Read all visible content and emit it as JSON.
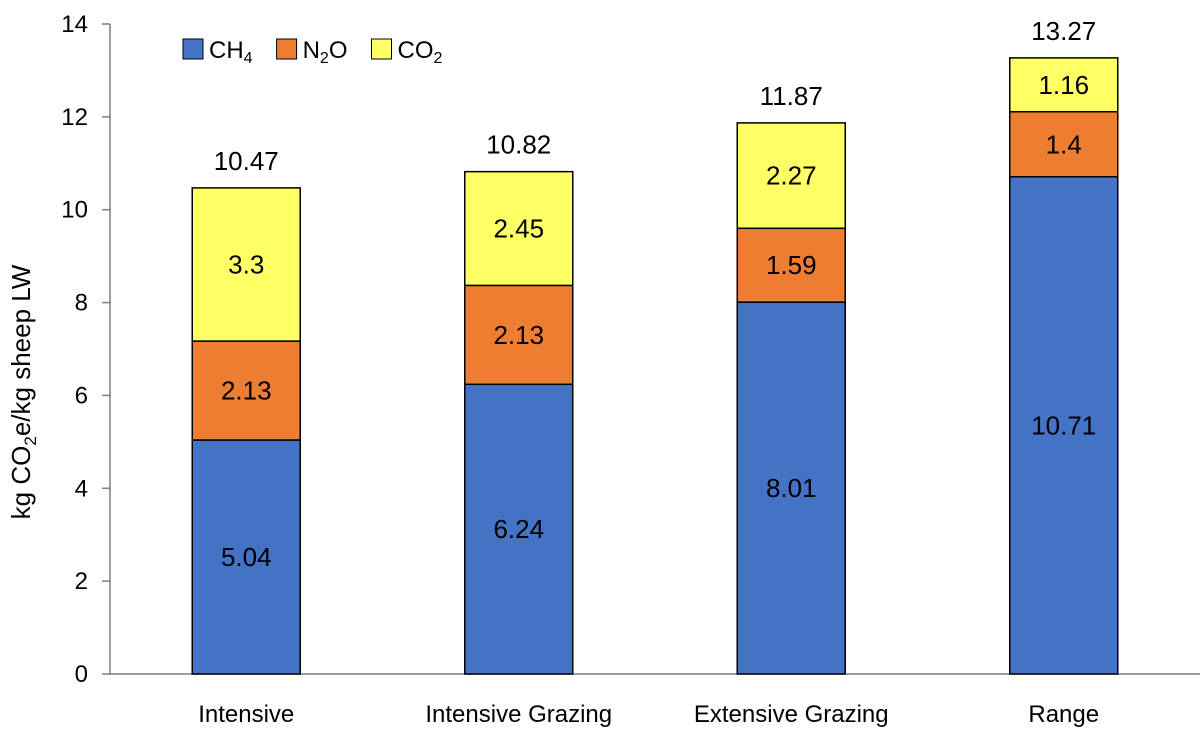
{
  "chart_data": {
    "type": "bar",
    "stacked": true,
    "categories": [
      "Intensive",
      "Intensive Grazing",
      "Extensive Grazing",
      "Range"
    ],
    "series": [
      {
        "key": "ch4",
        "name_base": "CH",
        "name_sub": "4",
        "name_tail": "",
        "color": "#4472C4",
        "values": [
          5.04,
          6.24,
          8.01,
          10.71
        ]
      },
      {
        "key": "n2o",
        "name_base": "N",
        "name_sub": "2",
        "name_tail": "O",
        "color": "#ED7D31",
        "values": [
          2.13,
          2.13,
          1.59,
          1.4
        ]
      },
      {
        "key": "co2",
        "name_base": "CO",
        "name_sub": "2",
        "name_tail": "",
        "color": "#FFFF66",
        "values": [
          3.3,
          2.45,
          2.27,
          1.16
        ]
      }
    ],
    "totals": [
      "10.47",
      "10.82",
      "11.87",
      "13.27"
    ],
    "ylabel": {
      "pre": "kg CO",
      "sub": "2",
      "post": "e/kg sheep LW"
    },
    "xlabel": "",
    "title": "",
    "ylim": [
      0,
      14
    ],
    "yticks": [
      0,
      2,
      4,
      6,
      8,
      10,
      12,
      14
    ],
    "grid": false,
    "legend_position": "top-left"
  }
}
